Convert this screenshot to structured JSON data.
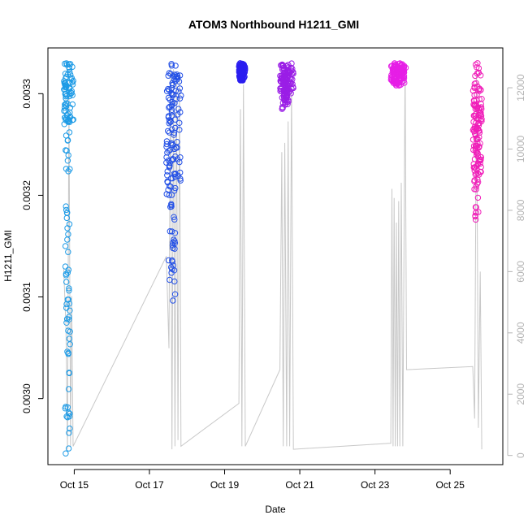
{
  "chart_data": {
    "type": "scatter",
    "title": "ATOM3 Northbound H1211_GMI",
    "xlabel": "Date",
    "ylabel": "H1211_GMI",
    "x_unit": "days, October",
    "xlim": [
      14.3,
      26.4
    ],
    "ylim": [
      0.002935,
      0.003345
    ],
    "y2lim": [
      -300,
      13300
    ],
    "x_ticks": [
      15,
      17,
      19,
      21,
      23,
      25
    ],
    "x_tick_labels": [
      "Oct 15",
      "Oct 17",
      "Oct 19",
      "Oct 21",
      "Oct 23",
      "Oct 25"
    ],
    "y_ticks": [
      0.003,
      0.0031,
      0.0032,
      0.0033
    ],
    "y_tick_labels": [
      "0.0030",
      "0.0031",
      "0.0032",
      "0.0033"
    ],
    "y2_ticks": [
      0,
      2000,
      4000,
      6000,
      8000,
      10000,
      12000
    ],
    "y2_tick_labels": [
      "0",
      "2000",
      "4000",
      "6000",
      "8000",
      "10000",
      "12000"
    ],
    "grid": false,
    "colors": {
      "altitude_line": "#c8c8c8",
      "right_axis": "#b4b4b4",
      "flight_colors": [
        "#1e9be6",
        "#2350e6",
        "#2b1ef0",
        "#9a1ee6",
        "#e61ee6",
        "#f01eb9"
      ]
    },
    "altitude_line": [
      [
        14.72,
        6100
      ],
      [
        14.78,
        4200
      ],
      [
        14.82,
        200
      ],
      [
        14.86,
        11800
      ],
      [
        14.9,
        300
      ],
      [
        14.93,
        5200
      ],
      [
        14.97,
        300
      ],
      [
        17.45,
        6500
      ],
      [
        17.52,
        3500
      ],
      [
        17.56,
        12800
      ],
      [
        17.6,
        200
      ],
      [
        17.64,
        12600
      ],
      [
        17.68,
        300
      ],
      [
        17.72,
        12400
      ],
      [
        17.76,
        500
      ],
      [
        17.8,
        12500
      ],
      [
        17.84,
        300
      ],
      [
        19.38,
        1700
      ],
      [
        19.42,
        11300
      ],
      [
        19.46,
        300
      ],
      [
        19.5,
        12100
      ],
      [
        19.55,
        300
      ],
      [
        20.47,
        2800
      ],
      [
        20.52,
        9900
      ],
      [
        20.56,
        300
      ],
      [
        20.6,
        10200
      ],
      [
        20.65,
        300
      ],
      [
        20.69,
        10900
      ],
      [
        20.73,
        300
      ],
      [
        20.78,
        12000
      ],
      [
        20.83,
        200
      ],
      [
        23.42,
        400
      ],
      [
        23.45,
        8700
      ],
      [
        23.48,
        300
      ],
      [
        23.51,
        8400
      ],
      [
        23.54,
        300
      ],
      [
        23.57,
        7600
      ],
      [
        23.6,
        300
      ],
      [
        23.63,
        8300
      ],
      [
        23.66,
        300
      ],
      [
        23.7,
        8900
      ],
      [
        23.74,
        300
      ],
      [
        23.8,
        12800
      ],
      [
        23.84,
        2800
      ],
      [
        25.6,
        2900
      ],
      [
        25.65,
        1200
      ],
      [
        25.7,
        12400
      ],
      [
        25.75,
        900
      ],
      [
        25.8,
        6000
      ],
      [
        25.84,
        200
      ]
    ],
    "flights": [
      {
        "x_range": [
          14.72,
          14.98
        ],
        "y_min": 0.002943,
        "dense_from": 0.00327
      },
      {
        "x_range": [
          17.45,
          17.84
        ],
        "y_min": 0.003088,
        "dense_from": 0.0032
      },
      {
        "x_range": [
          19.38,
          19.55
        ],
        "y_min": 0.003313,
        "dense_from": 0.003315
      },
      {
        "x_range": [
          20.47,
          20.83
        ],
        "y_min": 0.003285,
        "dense_from": 0.0033
      },
      {
        "x_range": [
          23.42,
          23.84
        ],
        "y_min": 0.003307,
        "dense_from": 0.00331
      },
      {
        "x_range": [
          25.6,
          25.84
        ],
        "y_min": 0.00317,
        "dense_from": 0.00322
      }
    ]
  }
}
